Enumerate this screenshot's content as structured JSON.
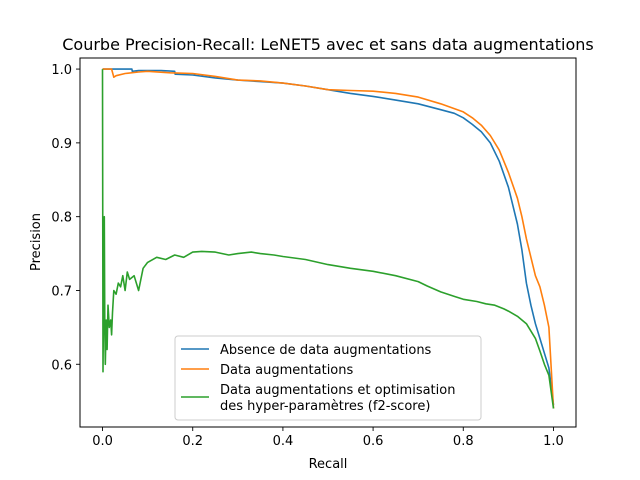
{
  "chart_data": {
    "type": "line",
    "title": "Courbe Precision-Recall: LeNET5 avec et sans data augmentations",
    "xlabel": "Recall",
    "ylabel": "Precision",
    "xlim": [
      -0.05,
      1.05
    ],
    "ylim": [
      0.515,
      1.015
    ],
    "xticks": [
      0.0,
      0.2,
      0.4,
      0.6,
      0.8,
      1.0
    ],
    "xtick_labels": [
      "0.0",
      "0.2",
      "0.4",
      "0.6",
      "0.8",
      "1.0"
    ],
    "yticks": [
      0.6,
      0.7,
      0.8,
      0.9,
      1.0
    ],
    "ytick_labels": [
      "0.6",
      "0.7",
      "0.8",
      "0.9",
      "1.0"
    ],
    "grid": false,
    "legend_position": "lower-center",
    "series": [
      {
        "name": "Absence de data augmentations",
        "color": "#1f77b4",
        "x": [
          0.0,
          0.02,
          0.04,
          0.065,
          0.066,
          0.08,
          0.1,
          0.13,
          0.16,
          0.161,
          0.2,
          0.25,
          0.3,
          0.35,
          0.4,
          0.45,
          0.5,
          0.55,
          0.6,
          0.65,
          0.7,
          0.75,
          0.78,
          0.8,
          0.82,
          0.84,
          0.86,
          0.88,
          0.9,
          0.92,
          0.93,
          0.94,
          0.95,
          0.96,
          0.97,
          0.98,
          0.99,
          1.0
        ],
        "y": [
          1.0,
          1.0,
          1.0,
          1.0,
          0.997,
          0.998,
          0.998,
          0.998,
          0.997,
          0.993,
          0.992,
          0.988,
          0.985,
          0.983,
          0.981,
          0.977,
          0.972,
          0.967,
          0.963,
          0.958,
          0.953,
          0.945,
          0.94,
          0.934,
          0.925,
          0.915,
          0.9,
          0.875,
          0.84,
          0.79,
          0.755,
          0.71,
          0.68,
          0.655,
          0.635,
          0.615,
          0.595,
          0.545
        ]
      },
      {
        "name": "Data augmentations",
        "color": "#ff7f0e",
        "x": [
          0.0,
          0.02,
          0.025,
          0.03,
          0.05,
          0.08,
          0.1,
          0.15,
          0.2,
          0.25,
          0.3,
          0.35,
          0.4,
          0.45,
          0.5,
          0.55,
          0.6,
          0.65,
          0.7,
          0.75,
          0.8,
          0.82,
          0.84,
          0.86,
          0.88,
          0.9,
          0.92,
          0.93,
          0.94,
          0.95,
          0.96,
          0.97,
          0.98,
          0.99,
          1.0
        ],
        "y": [
          1.0,
          1.0,
          0.989,
          0.991,
          0.994,
          0.996,
          0.997,
          0.995,
          0.994,
          0.99,
          0.985,
          0.984,
          0.981,
          0.977,
          0.972,
          0.971,
          0.97,
          0.967,
          0.962,
          0.953,
          0.942,
          0.934,
          0.924,
          0.91,
          0.89,
          0.86,
          0.825,
          0.8,
          0.77,
          0.745,
          0.72,
          0.705,
          0.68,
          0.65,
          0.54
        ]
      },
      {
        "name": "Data augmentations et optimisation\n des hyper-paramètres (f2-score)",
        "color": "#2ca02c",
        "x": [
          0.0,
          0.001,
          0.002,
          0.003,
          0.004,
          0.005,
          0.006,
          0.008,
          0.01,
          0.012,
          0.015,
          0.018,
          0.02,
          0.022,
          0.025,
          0.03,
          0.035,
          0.04,
          0.045,
          0.05,
          0.055,
          0.06,
          0.07,
          0.08,
          0.09,
          0.1,
          0.12,
          0.14,
          0.16,
          0.18,
          0.2,
          0.22,
          0.25,
          0.28,
          0.3,
          0.33,
          0.35,
          0.38,
          0.4,
          0.45,
          0.5,
          0.55,
          0.6,
          0.65,
          0.7,
          0.72,
          0.75,
          0.78,
          0.8,
          0.83,
          0.85,
          0.87,
          0.89,
          0.9,
          0.92,
          0.94,
          0.96,
          0.97,
          0.98,
          0.99,
          1.0
        ],
        "y": [
          1.0,
          0.59,
          0.66,
          0.71,
          0.8,
          0.65,
          0.6,
          0.66,
          0.62,
          0.68,
          0.65,
          0.66,
          0.64,
          0.67,
          0.7,
          0.695,
          0.71,
          0.705,
          0.72,
          0.7,
          0.725,
          0.715,
          0.72,
          0.7,
          0.73,
          0.738,
          0.745,
          0.742,
          0.748,
          0.745,
          0.752,
          0.753,
          0.752,
          0.748,
          0.75,
          0.752,
          0.75,
          0.748,
          0.746,
          0.742,
          0.735,
          0.73,
          0.726,
          0.72,
          0.712,
          0.706,
          0.698,
          0.692,
          0.688,
          0.685,
          0.682,
          0.68,
          0.675,
          0.672,
          0.665,
          0.655,
          0.635,
          0.618,
          0.6,
          0.585,
          0.54
        ]
      }
    ]
  }
}
